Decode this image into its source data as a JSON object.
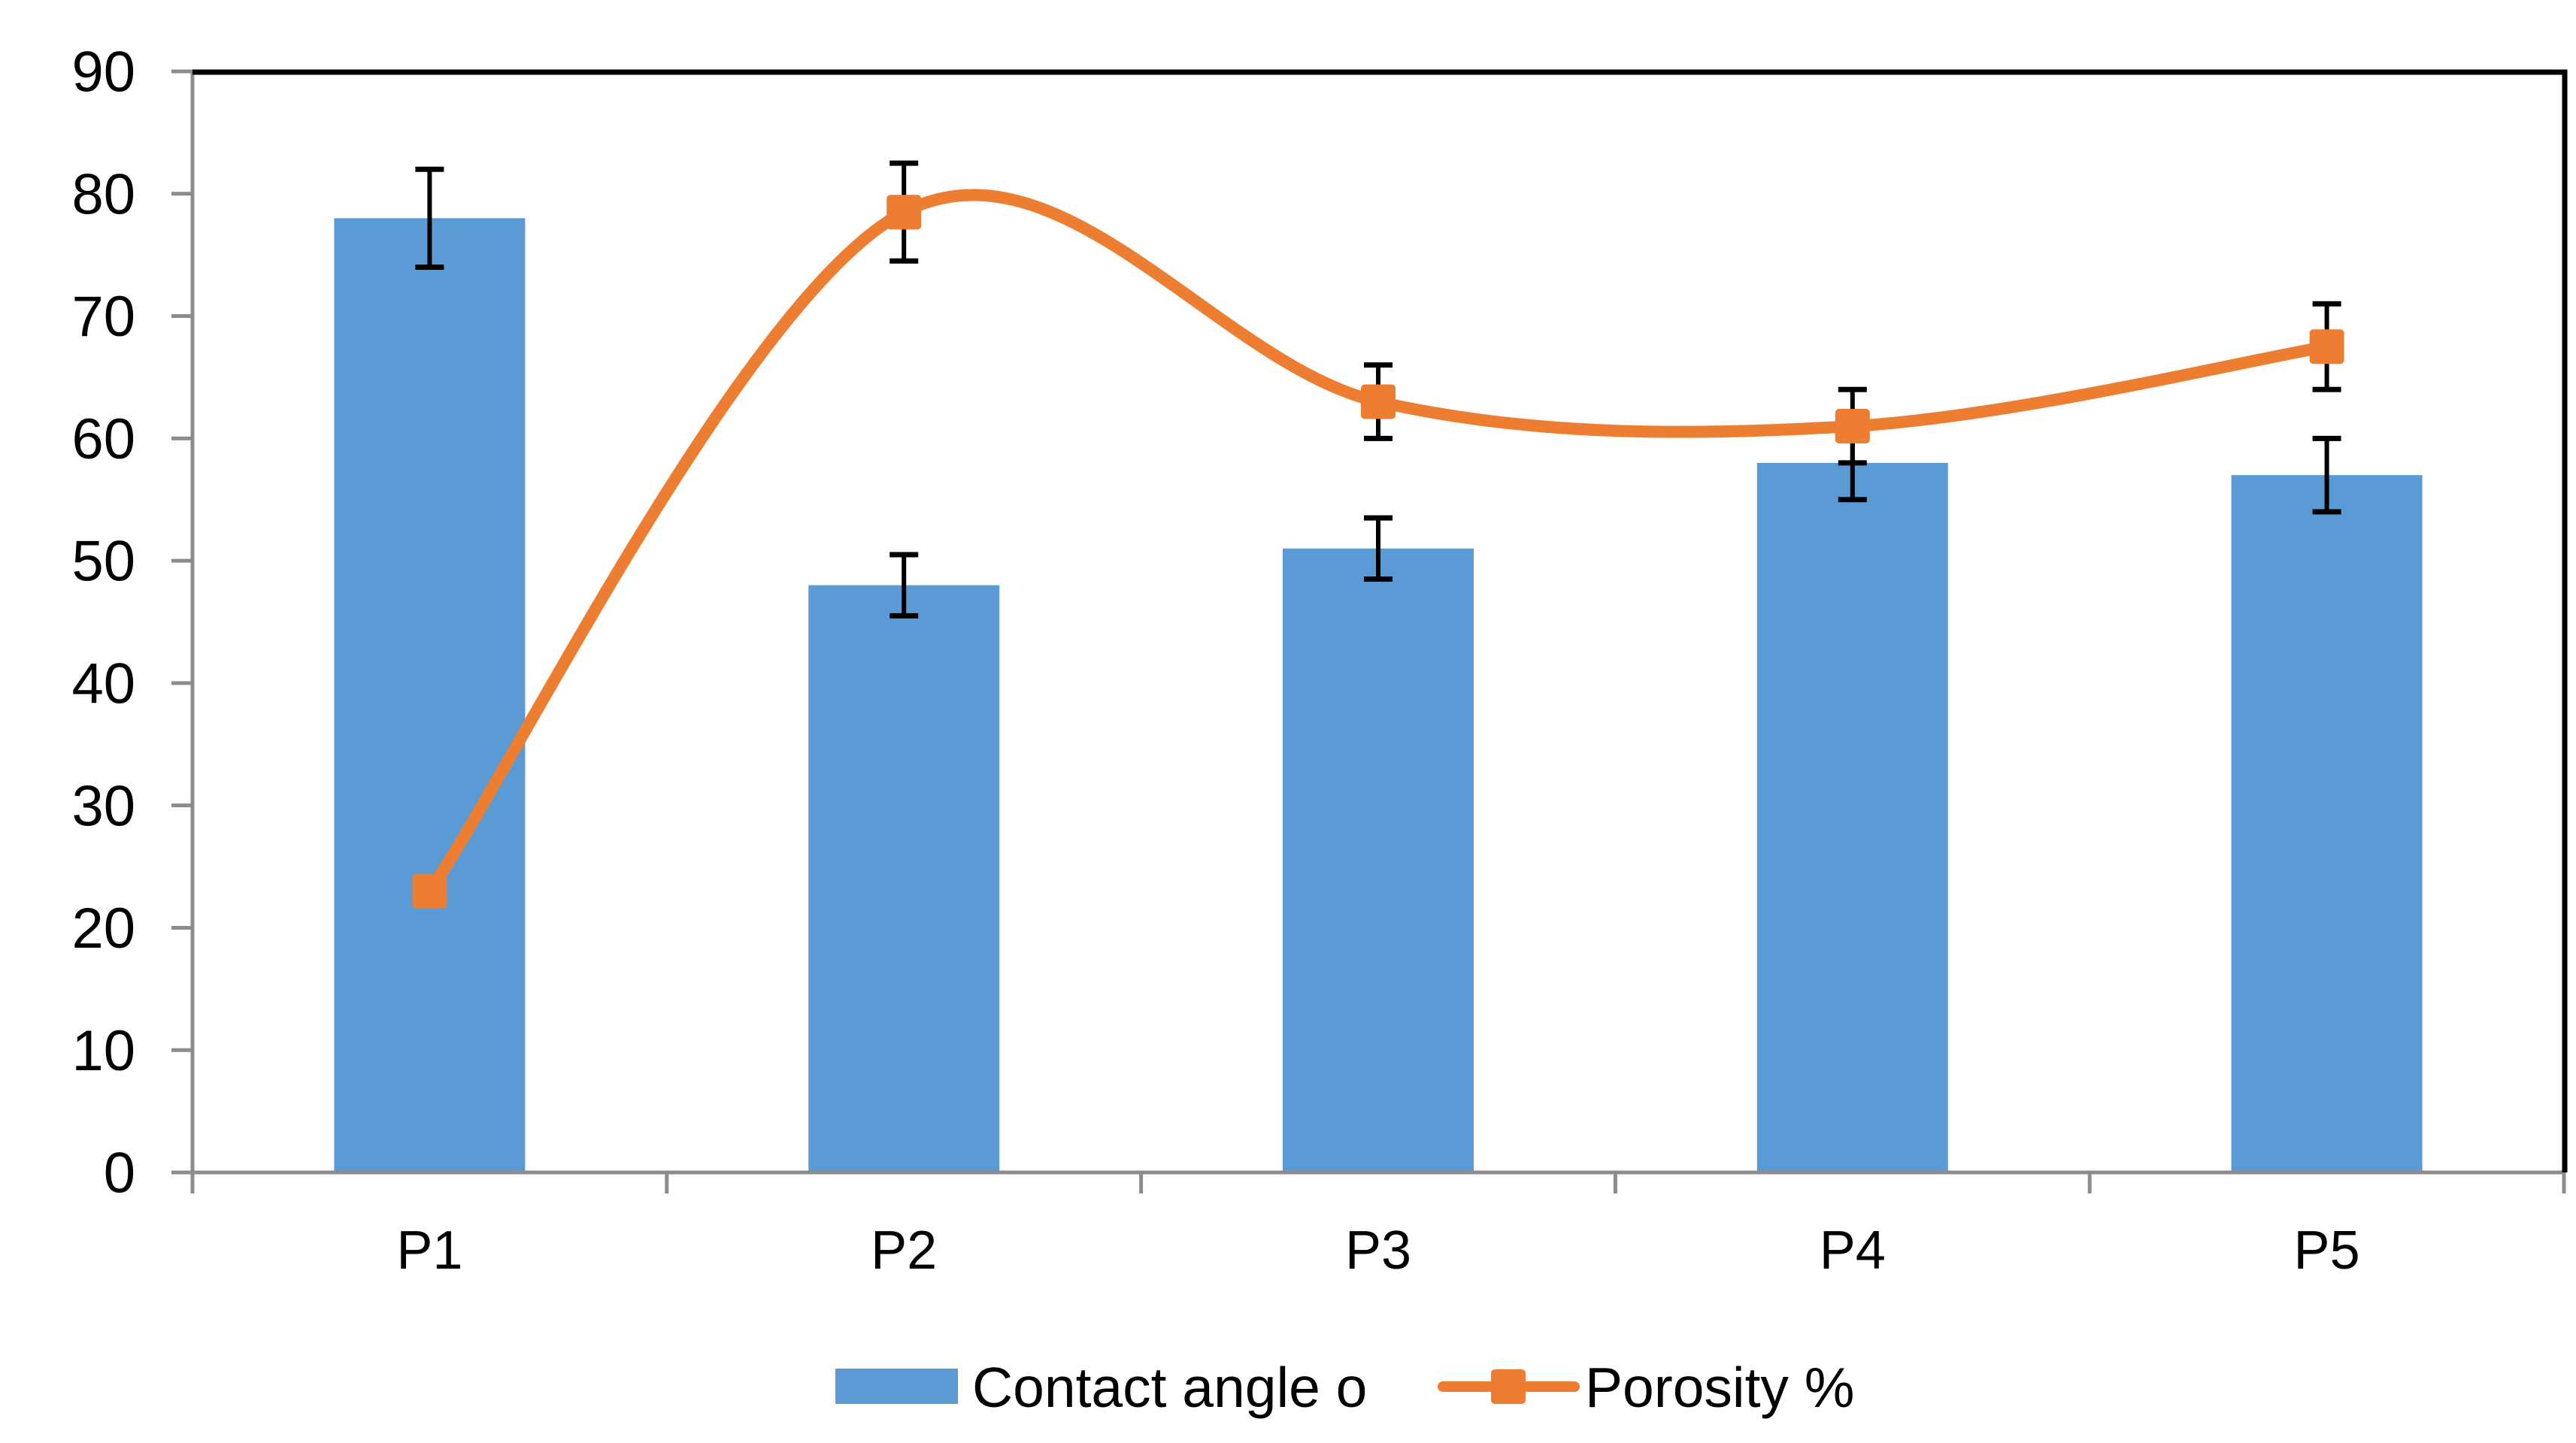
{
  "chart_data": {
    "type": "bar",
    "subtype": "combo-bar-line-with-error-bars",
    "categories": [
      "P1",
      "P2",
      "P3",
      "P4",
      "P5"
    ],
    "series": [
      {
        "name": "Contact angle o",
        "type": "bar",
        "color": "#5B9BD5",
        "values": [
          78,
          48,
          51,
          58,
          57
        ],
        "errors": [
          4,
          2.5,
          2.5,
          3,
          3
        ]
      },
      {
        "name": "Porosity %",
        "type": "line",
        "color": "#ED7D31",
        "smooth": true,
        "marker": "square",
        "values": [
          23,
          78.5,
          63,
          61,
          67.5
        ],
        "errors": [
          0,
          4,
          3,
          3,
          3.5
        ]
      }
    ],
    "title": "",
    "xlabel": "",
    "ylabel": "",
    "ylim": [
      0,
      90
    ],
    "ytick_step": 10,
    "ytick_labels": [
      "0",
      "10",
      "20",
      "30",
      "40",
      "50",
      "60",
      "70",
      "80",
      "90"
    ],
    "grid": "off",
    "legend_position": "bottom",
    "colors": {
      "axis": "#8C8C8C",
      "frame": "#000000",
      "error_bar": "#000000",
      "text": "#000000",
      "background": "#FFFFFF"
    }
  }
}
